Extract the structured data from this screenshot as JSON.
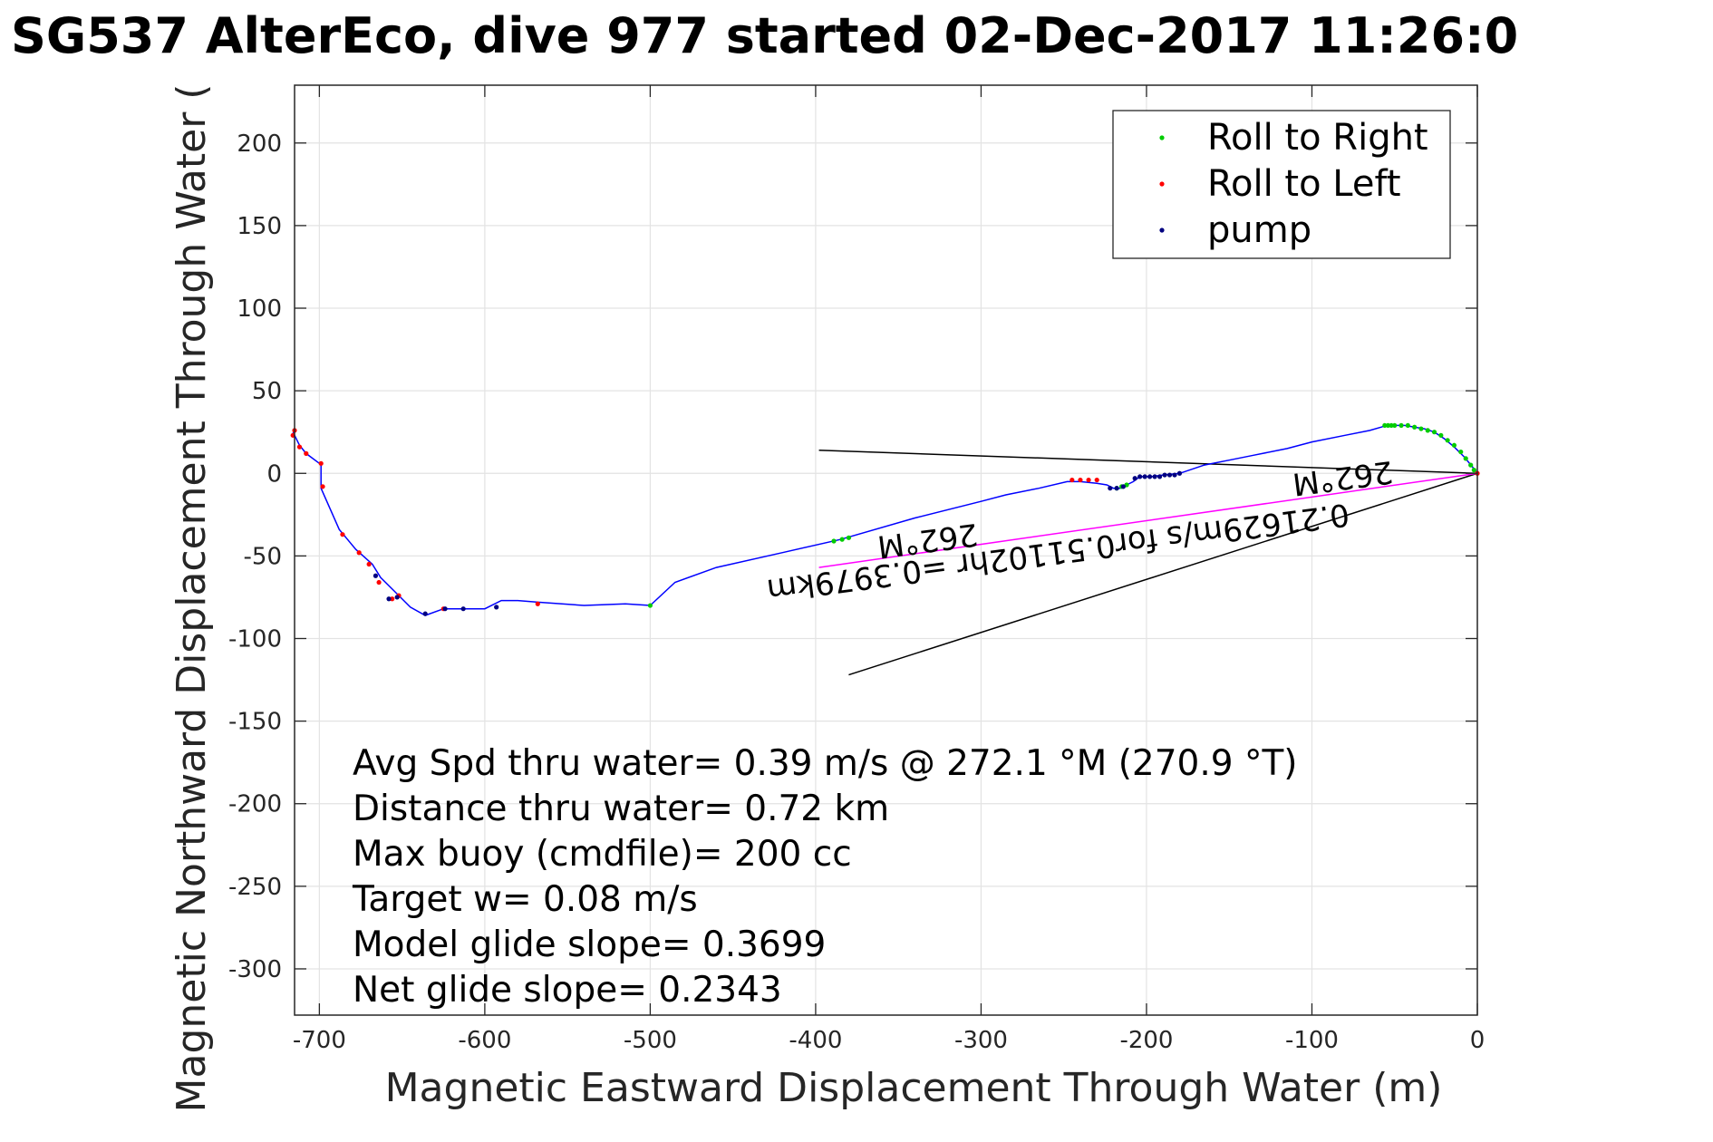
{
  "chart_data": {
    "type": "scatter",
    "title": "SG537 AlterEco, dive 977 started 02-Dec-2017 11:26:0",
    "xlabel": "Magnetic Eastward Displacement Through Water (m)",
    "ylabel": "Magnetic Northward Displacement Through Water (",
    "xlim": [
      -715,
      0
    ],
    "ylim": [
      -328,
      235
    ],
    "xticks": [
      -700,
      -600,
      -500,
      -400,
      -300,
      -200,
      -100,
      0
    ],
    "yticks": [
      200,
      150,
      100,
      50,
      0,
      -50,
      -100,
      -150,
      -200,
      -250,
      -300
    ],
    "grid": true,
    "legend_position": "top-right",
    "colors": {
      "track": "#0000ff",
      "roll_right": "#00cc00",
      "roll_left": "#ff0000",
      "pump": "#000080",
      "current": "#ff00ff",
      "lines": "#000000"
    },
    "track": {
      "x": [
        0,
        -3,
        -8,
        -14,
        -20,
        -26,
        -32,
        -38,
        -44,
        -50,
        -55,
        -58,
        -65,
        -80,
        -100,
        -115,
        -135,
        -150,
        -165,
        -180,
        -190,
        -197,
        -200,
        -204,
        -208,
        -212,
        -216,
        -220,
        -224,
        -230,
        -240,
        -248,
        -265,
        -285,
        -300,
        -340,
        -385,
        -420,
        -460,
        -485,
        -500,
        -515,
        -540,
        -568,
        -580,
        -590,
        -600,
        -615,
        -625,
        -636,
        -645,
        -655,
        -663,
        -668,
        -678,
        -688,
        -699,
        -699,
        -700,
        -708,
        -712,
        -716
      ],
      "y": [
        0,
        4,
        10,
        16,
        21,
        25,
        27,
        28,
        29,
        29,
        29,
        28,
        26,
        23,
        19,
        15,
        11,
        8,
        5,
        0,
        -1,
        -2,
        -2,
        -2,
        -5,
        -7,
        -9,
        -9,
        -7,
        -6,
        -5,
        -5,
        -9,
        -13,
        -17,
        -27,
        -40,
        -48,
        -57,
        -66,
        -80,
        -79,
        -80,
        -78,
        -77,
        -77,
        -82,
        -82,
        -82,
        -86,
        -81,
        -71,
        -63,
        -55,
        -46,
        -34,
        -9,
        6,
        6,
        12,
        17,
        25
      ]
    },
    "series": [
      {
        "name": "Roll to Right",
        "marker": "dot",
        "x": [
          -2,
          -4,
          -7,
          -10,
          -14,
          -18,
          -22,
          -26,
          -30,
          -34,
          -38,
          -42,
          -46,
          -50,
          -52,
          -54,
          -56,
          -212,
          -215,
          -218,
          -380,
          -384,
          -389,
          -500
        ],
        "y": [
          2,
          5,
          9,
          13,
          17,
          20,
          23,
          25,
          26,
          27,
          28,
          29,
          29,
          29,
          29,
          29,
          29,
          -7,
          -8,
          -9,
          -39,
          -40,
          -41,
          -80
        ]
      },
      {
        "name": "Roll to Left",
        "marker": "dot",
        "x": [
          0,
          -230,
          -235,
          -240,
          -245,
          -568,
          -625,
          -652,
          -656,
          -664,
          -670,
          -676,
          -686,
          -698,
          -699,
          -708,
          -712,
          -716,
          -715
        ],
        "y": [
          0,
          -4,
          -4,
          -4,
          -4,
          -79,
          -82,
          -74,
          -76,
          -66,
          -55,
          -48,
          -37,
          -8,
          6,
          12,
          16,
          23,
          26
        ]
      },
      {
        "name": "pump",
        "marker": "dot",
        "x": [
          -180,
          -183,
          -186,
          -189,
          -192,
          -195,
          -198,
          -201,
          -204,
          -207,
          -214,
          -218,
          -222,
          -593,
          -613,
          -624,
          -636,
          -653,
          -658,
          -666
        ],
        "y": [
          0,
          -1,
          -1,
          -1,
          -2,
          -2,
          -2,
          -2,
          -2,
          -3,
          -8,
          -9,
          -9,
          -81,
          -82,
          -82,
          -85,
          -75,
          -76,
          -62
        ]
      }
    ],
    "current_line": {
      "x": [
        0,
        -398
      ],
      "y": [
        0,
        -57
      ]
    },
    "aux_lines": [
      {
        "x": [
          0,
          -398
        ],
        "y": [
          0,
          14
        ]
      },
      {
        "x": [
          0,
          -380
        ],
        "y": [
          0,
          -122
        ]
      }
    ],
    "annotations": [
      "0.21629m/s for0.51102hr =0.3979km",
      "262°M",
      "262°M"
    ],
    "stats": [
      "Avg Spd thru water=  0.39 m/s @ 272.1 °M (270.9 °T)",
      "Distance thru water=  0.72 km",
      "Max buoy (cmdfile)= 200 cc",
      "Target w= 0.08 m/s",
      "Model glide slope= 0.3699",
      "Net glide slope= 0.2343"
    ]
  }
}
